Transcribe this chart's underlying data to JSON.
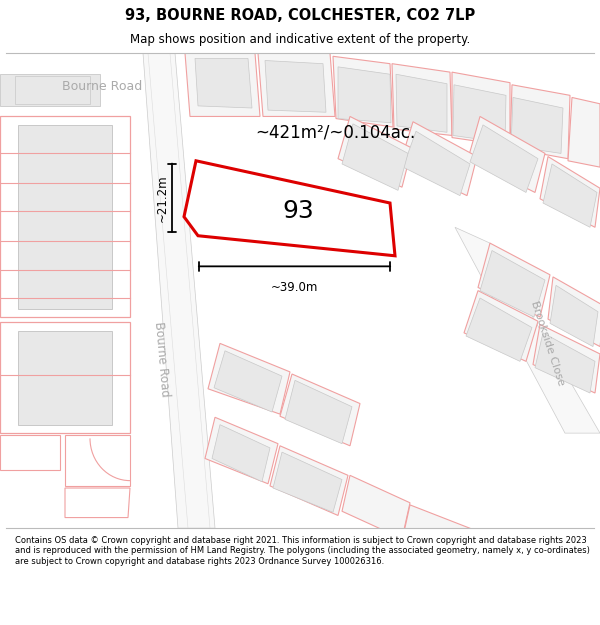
{
  "title": "93, BOURNE ROAD, COLCHESTER, CO2 7LP",
  "subtitle": "Map shows position and indicative extent of the property.",
  "footer": "Contains OS data © Crown copyright and database right 2021. This information is subject to Crown copyright and database rights 2023 and is reproduced with the permission of HM Land Registry. The polygons (including the associated geometry, namely x, y co-ordinates) are subject to Crown copyright and database rights 2023 Ordnance Survey 100026316.",
  "map_bg": "#ffffff",
  "building_fill": "#e8e8e8",
  "building_outline": "#c8c8c8",
  "parcel_line": "#f0a0a0",
  "road_fill": "#ffffff",
  "road_outline": "#e0a0a0",
  "highlighted_fill": "#ffffff",
  "highlighted_outline": "#dd0000",
  "area_label": "~421m²/~0.104ac.",
  "width_label": "~39.0m",
  "height_label": "~21.2m",
  "property_label": "93",
  "label_bourne_road_top": "Bourne Road",
  "label_bourne_road_side": "Bourne Road",
  "label_brookside": "Brookside Close"
}
